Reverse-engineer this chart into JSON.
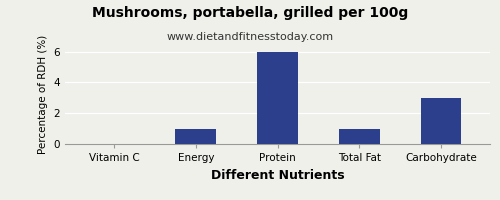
{
  "title": "Mushrooms, portabella, grilled per 100g",
  "subtitle": "www.dietandfitnesstoday.com",
  "xlabel": "Different Nutrients",
  "ylabel": "Percentage of RDH (%)",
  "categories": [
    "Vitamin C",
    "Energy",
    "Protein",
    "Total Fat",
    "Carbohydrate"
  ],
  "values": [
    0,
    1.0,
    6.0,
    1.0,
    3.0
  ],
  "bar_color": "#2b3f8c",
  "ylim": [
    0,
    6.5
  ],
  "yticks": [
    0,
    2,
    4,
    6
  ],
  "background_color": "#f0f0eb",
  "title_fontsize": 10,
  "subtitle_fontsize": 8,
  "xlabel_fontsize": 9,
  "ylabel_fontsize": 7.5,
  "tick_fontsize": 7.5
}
